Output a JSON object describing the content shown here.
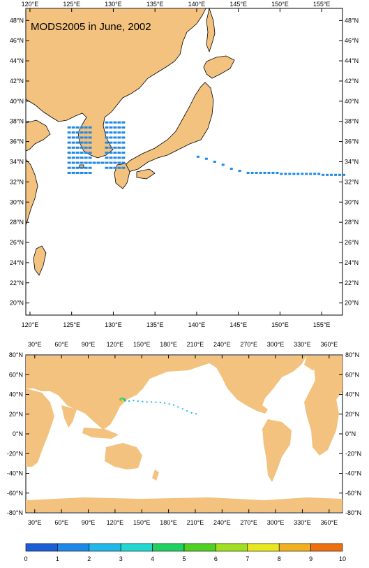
{
  "top_map": {
    "title": "MODS2005 in June, 2002",
    "lon_labels": [
      "120°E",
      "125°E",
      "130°E",
      "135°E",
      "140°E",
      "145°E",
      "150°E",
      "155°E"
    ],
    "lat_labels": [
      "20°N",
      "22°N",
      "24°N",
      "26°N",
      "28°N",
      "30°N",
      "32°N",
      "34°N",
      "36°N",
      "38°N",
      "40°N",
      "42°N",
      "44°N",
      "46°N",
      "48°N"
    ],
    "extent": {
      "lon_min": 119.5,
      "lon_max": 157.5,
      "lat_min": 18.8,
      "lat_max": 49.2
    }
  },
  "bottom_map": {
    "lon_labels": [
      "30°E",
      "60°E",
      "90°E",
      "120°E",
      "150°E",
      "180°E",
      "210°E",
      "240°E",
      "270°E",
      "300°E",
      "330°E",
      "360°E"
    ],
    "lat_labels": [
      "80°N",
      "60°N",
      "40°N",
      "20°N",
      "0°N",
      "-20°N",
      "-40°N",
      "-60°N",
      "-80°N"
    ],
    "extent": {
      "lon_min": 20,
      "lon_max": 375,
      "lat_min": -80,
      "lat_max": 80
    }
  },
  "colorbar": {
    "labels": [
      "0",
      "1",
      "2",
      "3",
      "4",
      "5",
      "6",
      "7",
      "8",
      "9",
      "10"
    ],
    "colors": [
      "#1a5fd6",
      "#1e88e8",
      "#20b8e8",
      "#20d8d0",
      "#20d060",
      "#50d020",
      "#a0e020",
      "#e8e820",
      "#f0b020",
      "#f07010"
    ]
  },
  "colors": {
    "land": "#f2c27e",
    "coast": "#000000",
    "obs": "#1e88e8",
    "ocean": "#ffffff"
  },
  "observations": {
    "description_visible": false,
    "track_lon": [
      140,
      141,
      142,
      143,
      144,
      145,
      146,
      147,
      148,
      149,
      150,
      151,
      152,
      153,
      154,
      155,
      156,
      157
    ],
    "track_lat": [
      34.6,
      34.4,
      34.1,
      33.8,
      33.4,
      33.2,
      33.0,
      33.0,
      33.0,
      33.0,
      32.9,
      32.9,
      32.9,
      32.9,
      32.9,
      32.8,
      32.8,
      32.8
    ]
  }
}
